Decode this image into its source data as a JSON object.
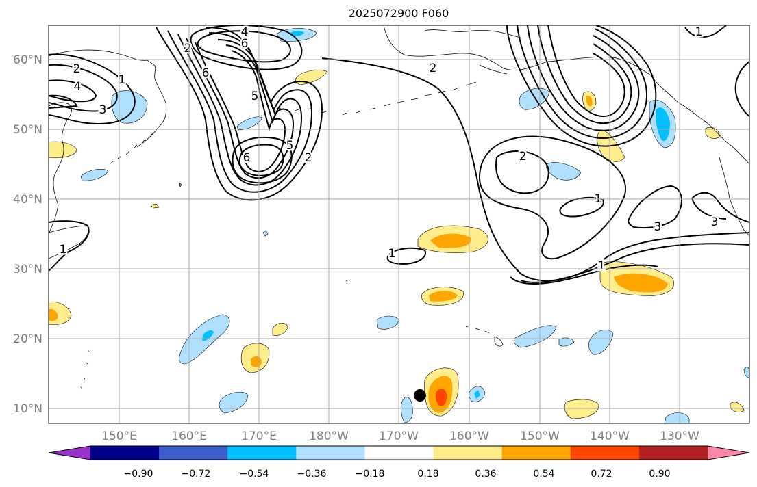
{
  "title": "2025072900 F060",
  "lat_labels": [
    "60°N",
    "50°N",
    "40°N",
    "30°N",
    "20°N",
    "10°N"
  ],
  "lon_labels": [
    "150°E",
    "160°E",
    "170°E",
    "180°W",
    "170°W",
    "160°W",
    "150°W",
    "140°W",
    "130°W"
  ],
  "colorbar": {
    "colors": [
      "#9932cc",
      "#00008b",
      "#3a5fcd",
      "#00bfff",
      "#b0e0ff",
      "#ffffff",
      "#ffec8b",
      "#ffa500",
      "#ff4500",
      "#b22222",
      "#ff88aa"
    ],
    "tick_labels": [
      "−0.90",
      "−0.72",
      "−0.54",
      "−0.36",
      "−0.18",
      "0.18",
      "0.36",
      "0.54",
      "0.72",
      "0.90"
    ]
  },
  "contour_labels": [
    "4",
    "6",
    "2",
    "4",
    "3",
    "1",
    "5",
    "2",
    "6",
    "5",
    "2",
    "6",
    "2",
    "1",
    "3",
    "3",
    "1",
    "1",
    "1",
    "2",
    "1"
  ],
  "colors": {
    "positive_light": "#ffec8b",
    "positive_mid": "#ffa500",
    "positive_strong": "#ff4500",
    "negative_light": "#b0e0ff",
    "negative_mid": "#00bfff",
    "gridline": "#aaaaaa",
    "axis_label": "#808080"
  },
  "marker": "storm-position-dot"
}
